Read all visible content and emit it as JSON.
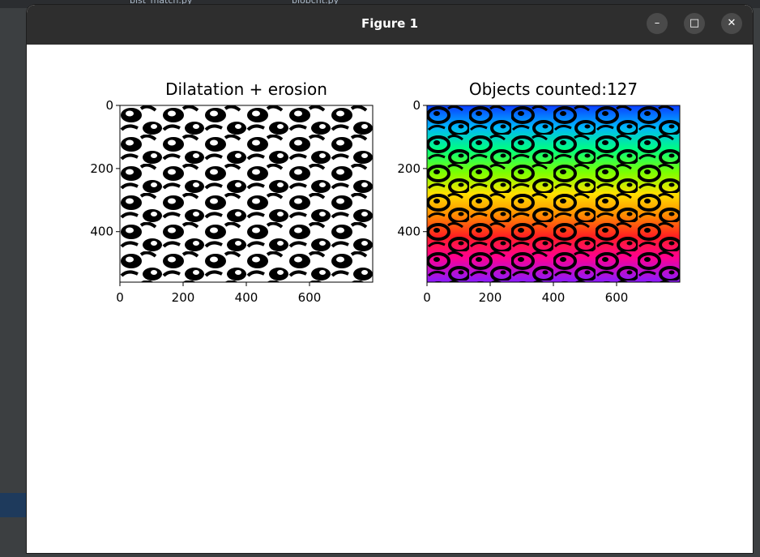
{
  "window": {
    "title": "Figure 1",
    "buttons": {
      "minimize": "–",
      "maximize": "□",
      "close": "✕"
    }
  },
  "background_tabs": [
    "bist_match.py",
    "blobcnt.py"
  ],
  "chart_data": [
    {
      "type": "image",
      "title": "Dilatation + erosion",
      "xticks": [
        "0",
        "200",
        "400",
        "600"
      ],
      "yticks": [
        "0",
        "200",
        "400"
      ],
      "xlim": [
        0,
        800
      ],
      "ylim": [
        560,
        0
      ],
      "colormap": "binary (black blobs on white)"
    },
    {
      "type": "image",
      "title": "Objects counted:127",
      "objects_counted": 127,
      "xticks": [
        "0",
        "200",
        "400",
        "600"
      ],
      "yticks": [
        "0",
        "200",
        "400"
      ],
      "xlim": [
        0,
        800
      ],
      "ylim": [
        560,
        0
      ],
      "colormap": "hsv labels on black background"
    }
  ]
}
